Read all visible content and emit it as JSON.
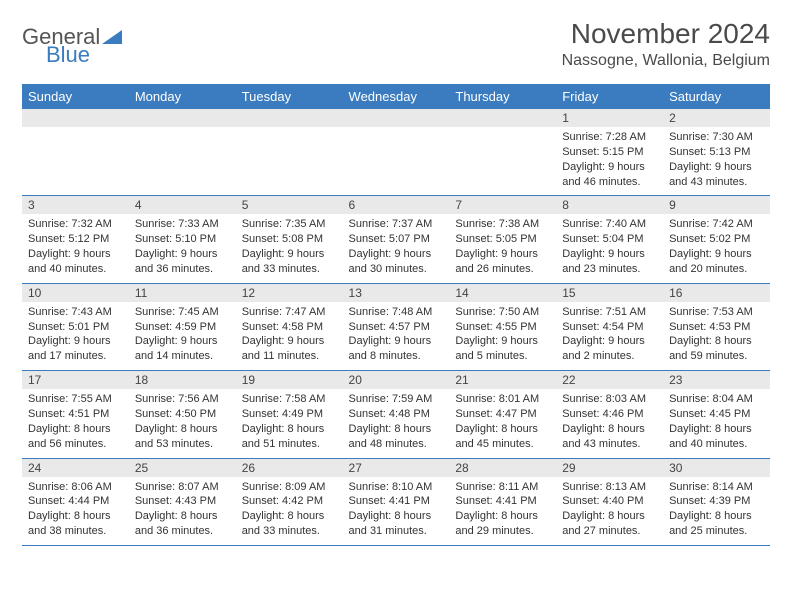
{
  "logo": {
    "text1": "General",
    "text2": "Blue",
    "accent_color": "#3b7bbf"
  },
  "title": "November 2024",
  "location": "Nassogne, Wallonia, Belgium",
  "colors": {
    "header_bg": "#3b7bbf",
    "header_text": "#ffffff",
    "daynum_bg": "#e9e9e9",
    "row_border": "#3b7bbf",
    "text": "#333333",
    "background": "#ffffff"
  },
  "day_headers": [
    "Sunday",
    "Monday",
    "Tuesday",
    "Wednesday",
    "Thursday",
    "Friday",
    "Saturday"
  ],
  "weeks": [
    [
      {
        "num": "",
        "sunrise": "",
        "sunset": "",
        "daylight": ""
      },
      {
        "num": "",
        "sunrise": "",
        "sunset": "",
        "daylight": ""
      },
      {
        "num": "",
        "sunrise": "",
        "sunset": "",
        "daylight": ""
      },
      {
        "num": "",
        "sunrise": "",
        "sunset": "",
        "daylight": ""
      },
      {
        "num": "",
        "sunrise": "",
        "sunset": "",
        "daylight": ""
      },
      {
        "num": "1",
        "sunrise": "Sunrise: 7:28 AM",
        "sunset": "Sunset: 5:15 PM",
        "daylight": "Daylight: 9 hours and 46 minutes."
      },
      {
        "num": "2",
        "sunrise": "Sunrise: 7:30 AM",
        "sunset": "Sunset: 5:13 PM",
        "daylight": "Daylight: 9 hours and 43 minutes."
      }
    ],
    [
      {
        "num": "3",
        "sunrise": "Sunrise: 7:32 AM",
        "sunset": "Sunset: 5:12 PM",
        "daylight": "Daylight: 9 hours and 40 minutes."
      },
      {
        "num": "4",
        "sunrise": "Sunrise: 7:33 AM",
        "sunset": "Sunset: 5:10 PM",
        "daylight": "Daylight: 9 hours and 36 minutes."
      },
      {
        "num": "5",
        "sunrise": "Sunrise: 7:35 AM",
        "sunset": "Sunset: 5:08 PM",
        "daylight": "Daylight: 9 hours and 33 minutes."
      },
      {
        "num": "6",
        "sunrise": "Sunrise: 7:37 AM",
        "sunset": "Sunset: 5:07 PM",
        "daylight": "Daylight: 9 hours and 30 minutes."
      },
      {
        "num": "7",
        "sunrise": "Sunrise: 7:38 AM",
        "sunset": "Sunset: 5:05 PM",
        "daylight": "Daylight: 9 hours and 26 minutes."
      },
      {
        "num": "8",
        "sunrise": "Sunrise: 7:40 AM",
        "sunset": "Sunset: 5:04 PM",
        "daylight": "Daylight: 9 hours and 23 minutes."
      },
      {
        "num": "9",
        "sunrise": "Sunrise: 7:42 AM",
        "sunset": "Sunset: 5:02 PM",
        "daylight": "Daylight: 9 hours and 20 minutes."
      }
    ],
    [
      {
        "num": "10",
        "sunrise": "Sunrise: 7:43 AM",
        "sunset": "Sunset: 5:01 PM",
        "daylight": "Daylight: 9 hours and 17 minutes."
      },
      {
        "num": "11",
        "sunrise": "Sunrise: 7:45 AM",
        "sunset": "Sunset: 4:59 PM",
        "daylight": "Daylight: 9 hours and 14 minutes."
      },
      {
        "num": "12",
        "sunrise": "Sunrise: 7:47 AM",
        "sunset": "Sunset: 4:58 PM",
        "daylight": "Daylight: 9 hours and 11 minutes."
      },
      {
        "num": "13",
        "sunrise": "Sunrise: 7:48 AM",
        "sunset": "Sunset: 4:57 PM",
        "daylight": "Daylight: 9 hours and 8 minutes."
      },
      {
        "num": "14",
        "sunrise": "Sunrise: 7:50 AM",
        "sunset": "Sunset: 4:55 PM",
        "daylight": "Daylight: 9 hours and 5 minutes."
      },
      {
        "num": "15",
        "sunrise": "Sunrise: 7:51 AM",
        "sunset": "Sunset: 4:54 PM",
        "daylight": "Daylight: 9 hours and 2 minutes."
      },
      {
        "num": "16",
        "sunrise": "Sunrise: 7:53 AM",
        "sunset": "Sunset: 4:53 PM",
        "daylight": "Daylight: 8 hours and 59 minutes."
      }
    ],
    [
      {
        "num": "17",
        "sunrise": "Sunrise: 7:55 AM",
        "sunset": "Sunset: 4:51 PM",
        "daylight": "Daylight: 8 hours and 56 minutes."
      },
      {
        "num": "18",
        "sunrise": "Sunrise: 7:56 AM",
        "sunset": "Sunset: 4:50 PM",
        "daylight": "Daylight: 8 hours and 53 minutes."
      },
      {
        "num": "19",
        "sunrise": "Sunrise: 7:58 AM",
        "sunset": "Sunset: 4:49 PM",
        "daylight": "Daylight: 8 hours and 51 minutes."
      },
      {
        "num": "20",
        "sunrise": "Sunrise: 7:59 AM",
        "sunset": "Sunset: 4:48 PM",
        "daylight": "Daylight: 8 hours and 48 minutes."
      },
      {
        "num": "21",
        "sunrise": "Sunrise: 8:01 AM",
        "sunset": "Sunset: 4:47 PM",
        "daylight": "Daylight: 8 hours and 45 minutes."
      },
      {
        "num": "22",
        "sunrise": "Sunrise: 8:03 AM",
        "sunset": "Sunset: 4:46 PM",
        "daylight": "Daylight: 8 hours and 43 minutes."
      },
      {
        "num": "23",
        "sunrise": "Sunrise: 8:04 AM",
        "sunset": "Sunset: 4:45 PM",
        "daylight": "Daylight: 8 hours and 40 minutes."
      }
    ],
    [
      {
        "num": "24",
        "sunrise": "Sunrise: 8:06 AM",
        "sunset": "Sunset: 4:44 PM",
        "daylight": "Daylight: 8 hours and 38 minutes."
      },
      {
        "num": "25",
        "sunrise": "Sunrise: 8:07 AM",
        "sunset": "Sunset: 4:43 PM",
        "daylight": "Daylight: 8 hours and 36 minutes."
      },
      {
        "num": "26",
        "sunrise": "Sunrise: 8:09 AM",
        "sunset": "Sunset: 4:42 PM",
        "daylight": "Daylight: 8 hours and 33 minutes."
      },
      {
        "num": "27",
        "sunrise": "Sunrise: 8:10 AM",
        "sunset": "Sunset: 4:41 PM",
        "daylight": "Daylight: 8 hours and 31 minutes."
      },
      {
        "num": "28",
        "sunrise": "Sunrise: 8:11 AM",
        "sunset": "Sunset: 4:41 PM",
        "daylight": "Daylight: 8 hours and 29 minutes."
      },
      {
        "num": "29",
        "sunrise": "Sunrise: 8:13 AM",
        "sunset": "Sunset: 4:40 PM",
        "daylight": "Daylight: 8 hours and 27 minutes."
      },
      {
        "num": "30",
        "sunrise": "Sunrise: 8:14 AM",
        "sunset": "Sunset: 4:39 PM",
        "daylight": "Daylight: 8 hours and 25 minutes."
      }
    ]
  ]
}
